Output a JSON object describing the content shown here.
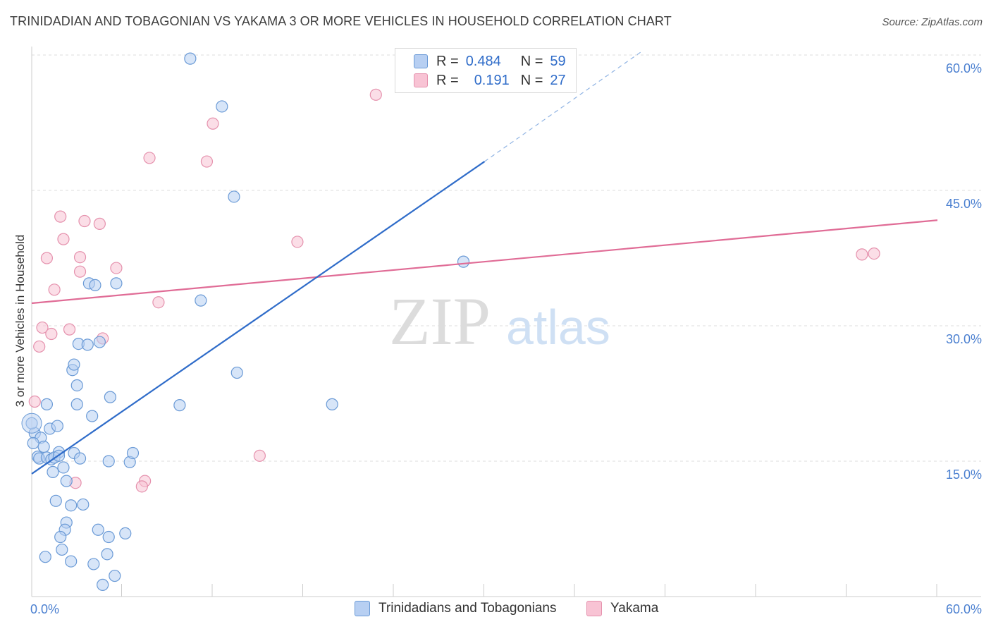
{
  "title": "TRINIDADIAN AND TOBAGONIAN VS YAKAMA 3 OR MORE VEHICLES IN HOUSEHOLD CORRELATION CHART",
  "source": "Source: ZipAtlas.com",
  "watermark": {
    "zip": "ZIP",
    "atlas": "atlas"
  },
  "colors": {
    "blue_fill": "#b7cff2",
    "blue_stroke": "#6a9ad6",
    "blue_line": "#2f6cc9",
    "pink_fill": "#f8c3d4",
    "pink_stroke": "#e591ad",
    "pink_line": "#e06c96",
    "grid": "#dddddd",
    "tick_text": "#4a7fd0"
  },
  "legend": {
    "rows": [
      {
        "r_label": "R =",
        "r_value": "0.484",
        "n_label": "N =",
        "n_value": "59"
      },
      {
        "r_label": "R =",
        "r_value": "0.191",
        "n_label": "N =",
        "n_value": "27"
      }
    ]
  },
  "chart_data": {
    "type": "scatter",
    "title": "TRINIDADIAN AND TOBAGONIAN VS YAKAMA 3 OR MORE VEHICLES IN HOUSEHOLD CORRELATION CHART",
    "xlabel": "",
    "ylabel": "3 or more Vehicles in Household",
    "xlim": [
      0,
      60
    ],
    "ylim": [
      0,
      60
    ],
    "x_tick_labels": [
      "0.0%",
      "60.0%"
    ],
    "y_ticks": [
      15,
      30,
      45,
      60
    ],
    "y_tick_labels": [
      "15.0%",
      "30.0%",
      "45.0%",
      "60.0%"
    ],
    "x_minor_ticks": [
      6,
      12,
      18,
      24,
      30,
      36,
      42,
      48,
      54,
      60
    ],
    "grid": true,
    "series": [
      {
        "name": "Trinidadians and Tobagonians",
        "color": "blue",
        "trend": {
          "x0": 0,
          "y0": 13.6,
          "x1": 30,
          "y1": 48.2,
          "dash_to_x": 40.5,
          "dash_to_y": 60.5
        },
        "points": [
          [
            10.5,
            59.6
          ],
          [
            12.6,
            54.3
          ],
          [
            13.4,
            44.3
          ],
          [
            28.6,
            37.1
          ],
          [
            3.8,
            34.7
          ],
          [
            4.2,
            34.5
          ],
          [
            5.6,
            34.7
          ],
          [
            11.2,
            32.8
          ],
          [
            3.1,
            28.0
          ],
          [
            3.7,
            27.9
          ],
          [
            4.5,
            28.2
          ],
          [
            13.6,
            24.8
          ],
          [
            2.7,
            25.1
          ],
          [
            2.8,
            25.7
          ],
          [
            3.0,
            23.4
          ],
          [
            5.2,
            22.1
          ],
          [
            1.0,
            21.3
          ],
          [
            3.0,
            21.3
          ],
          [
            9.8,
            21.2
          ],
          [
            19.9,
            21.3
          ],
          [
            4.0,
            20.0
          ],
          [
            0.2,
            18.1
          ],
          [
            0.6,
            17.6
          ],
          [
            1.2,
            18.6
          ],
          [
            1.7,
            18.9
          ],
          [
            0.8,
            16.6
          ],
          [
            1.8,
            16.0
          ],
          [
            0.4,
            15.5
          ],
          [
            0.5,
            15.3
          ],
          [
            1.0,
            15.4
          ],
          [
            1.3,
            15.2
          ],
          [
            1.5,
            15.4
          ],
          [
            2.8,
            15.9
          ],
          [
            3.2,
            15.3
          ],
          [
            5.1,
            15.0
          ],
          [
            6.5,
            14.9
          ],
          [
            6.7,
            15.9
          ],
          [
            1.4,
            13.8
          ],
          [
            2.1,
            14.3
          ],
          [
            2.3,
            12.8
          ],
          [
            1.6,
            10.6
          ],
          [
            2.6,
            10.1
          ],
          [
            3.4,
            10.2
          ],
          [
            2.3,
            8.2
          ],
          [
            2.2,
            7.4
          ],
          [
            4.4,
            7.4
          ],
          [
            6.2,
            7.0
          ],
          [
            1.9,
            6.6
          ],
          [
            5.1,
            6.6
          ],
          [
            2.0,
            5.2
          ],
          [
            0.9,
            4.4
          ],
          [
            5.0,
            4.7
          ],
          [
            2.6,
            3.9
          ],
          [
            4.1,
            3.6
          ],
          [
            5.5,
            2.3
          ],
          [
            4.7,
            1.3
          ],
          [
            0.0,
            19.2
          ],
          [
            0.1,
            17.0
          ],
          [
            1.8,
            15.6
          ]
        ]
      },
      {
        "name": "Yakama",
        "color": "pink",
        "trend": {
          "x0": 0,
          "y0": 32.5,
          "x1": 60,
          "y1": 41.7
        },
        "points": [
          [
            22.8,
            55.6
          ],
          [
            12.0,
            52.4
          ],
          [
            7.8,
            48.6
          ],
          [
            11.6,
            48.2
          ],
          [
            1.9,
            42.1
          ],
          [
            3.5,
            41.6
          ],
          [
            4.5,
            41.3
          ],
          [
            17.6,
            39.3
          ],
          [
            2.1,
            39.6
          ],
          [
            1.0,
            37.5
          ],
          [
            3.2,
            37.6
          ],
          [
            5.6,
            36.4
          ],
          [
            3.2,
            36.0
          ],
          [
            55.0,
            37.9
          ],
          [
            55.8,
            38.0
          ],
          [
            1.5,
            34.0
          ],
          [
            8.4,
            32.6
          ],
          [
            0.7,
            29.8
          ],
          [
            2.5,
            29.6
          ],
          [
            4.7,
            28.6
          ],
          [
            1.3,
            29.1
          ],
          [
            0.5,
            27.7
          ],
          [
            0.2,
            21.6
          ],
          [
            15.1,
            15.6
          ],
          [
            7.5,
            12.8
          ],
          [
            7.3,
            12.2
          ],
          [
            2.9,
            12.6
          ]
        ]
      }
    ]
  },
  "bottom_legend": [
    {
      "label": "Trinidadians and Tobagonians"
    },
    {
      "label": "Yakama"
    }
  ]
}
